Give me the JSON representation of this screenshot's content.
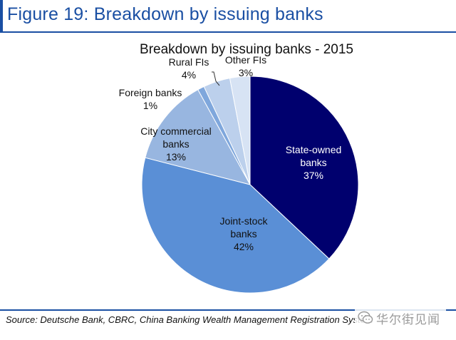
{
  "figure": {
    "title": "Figure 19: Breakdown by issuing banks",
    "source": "Source: Deutsche Bank, CBRC, China Banking Wealth Management Registration System",
    "watermark": "华尔街见闻"
  },
  "chart_data": {
    "type": "pie",
    "title": "Breakdown by issuing banks - 2015",
    "slices": [
      {
        "label": [
          "State-owned",
          "banks"
        ],
        "percent_label": "37%",
        "value": 37,
        "color": "#00006e",
        "text_color": "#ffffff"
      },
      {
        "label": [
          "Joint-stock",
          "banks"
        ],
        "percent_label": "42%",
        "value": 42,
        "color": "#5a8fd6",
        "text_color": "#111111"
      },
      {
        "label": [
          "City commercial",
          "banks"
        ],
        "percent_label": "13%",
        "value": 13,
        "color": "#98b6e0",
        "text_color": "#111111"
      },
      {
        "label": [
          "Foreign banks"
        ],
        "percent_label": "1%",
        "value": 1,
        "color": "#7fa7dc",
        "text_color": "#111111"
      },
      {
        "label": [
          "Rural FIs"
        ],
        "percent_label": "4%",
        "value": 4,
        "color": "#bcd0ec",
        "text_color": "#111111"
      },
      {
        "label": [
          "Other FIs"
        ],
        "percent_label": "3%",
        "value": 3,
        "color": "#d7e3f4",
        "text_color": "#111111"
      }
    ],
    "start_angle_deg": 0,
    "direction": "clockwise"
  }
}
